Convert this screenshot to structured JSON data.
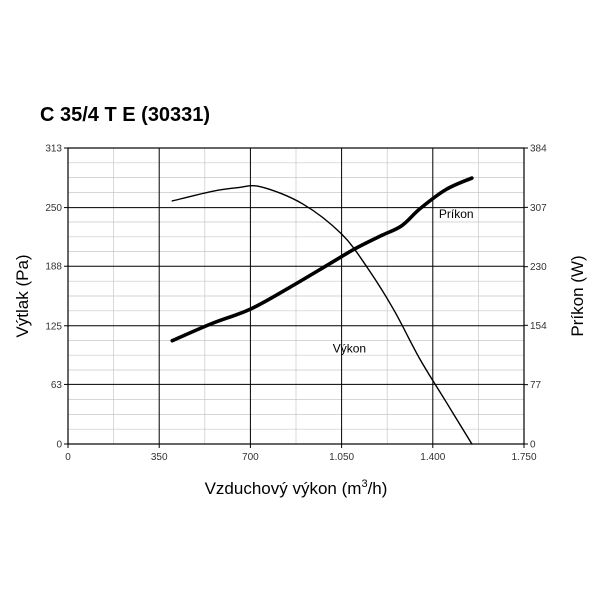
{
  "chart_data": {
    "type": "line",
    "title": "C 35/4 T E (30331)",
    "xlabel_main": "Vzduchový výkon (m",
    "xlabel_sup": "3",
    "xlabel_end": "/h)",
    "ylabel_left": "Výtlak (Pa)",
    "ylabel_right": "Príkon (W)",
    "xlim": [
      0,
      1750
    ],
    "ylim_left": [
      0,
      313
    ],
    "ylim_right": [
      0,
      384
    ],
    "x_ticks": [
      0,
      350,
      700,
      1050,
      1400,
      1750
    ],
    "x_tick_labels": [
      "0",
      "350",
      "700",
      "1.050",
      "1.400",
      "1.750"
    ],
    "y_left_ticks": [
      0,
      63,
      125,
      188,
      250,
      313
    ],
    "y_left_tick_labels": [
      "0",
      "63",
      "125",
      "188",
      "250",
      "313"
    ],
    "y_right_ticks": [
      0,
      77,
      154,
      230,
      307,
      384
    ],
    "y_right_tick_labels": [
      "0",
      "77",
      "154",
      "230",
      "307",
      "384"
    ],
    "grid": true,
    "series": [
      {
        "name": "Výkon",
        "axis": "left",
        "points": [
          [
            400,
            257
          ],
          [
            550,
            267
          ],
          [
            650,
            271
          ],
          [
            740,
            272
          ],
          [
            900,
            254
          ],
          [
            1050,
            222
          ],
          [
            1150,
            186
          ],
          [
            1250,
            142
          ],
          [
            1350,
            90
          ],
          [
            1450,
            45
          ],
          [
            1550,
            0
          ]
        ]
      },
      {
        "name": "Príkon",
        "axis": "right",
        "points": [
          [
            400,
            134
          ],
          [
            550,
            156
          ],
          [
            700,
            175
          ],
          [
            850,
            203
          ],
          [
            1000,
            233
          ],
          [
            1100,
            253
          ],
          [
            1200,
            270
          ],
          [
            1280,
            283
          ],
          [
            1350,
            305
          ],
          [
            1450,
            330
          ],
          [
            1550,
            345
          ]
        ]
      }
    ],
    "annotations": [
      {
        "text": "Príkon",
        "x": 1490,
        "y_right": 293
      },
      {
        "text": "Výkon",
        "x": 1080,
        "y_left": 97
      }
    ]
  }
}
